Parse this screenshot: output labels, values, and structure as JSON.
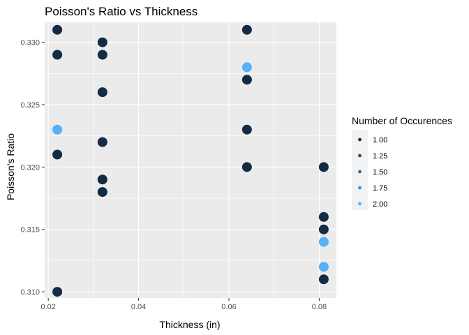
{
  "chart_data": {
    "type": "scatter",
    "title": "Poisson's Ratio vs Thickness",
    "xlabel": "Thickness (in)",
    "ylabel": "Poisson's Ratio",
    "xlim": [
      0.0192,
      0.0838
    ],
    "ylim": [
      0.3095,
      0.3316
    ],
    "x_ticks": [
      0.02,
      0.04,
      0.06,
      0.08
    ],
    "x_tick_labels": [
      "0.02",
      "0.04",
      "0.06",
      "0.08"
    ],
    "y_ticks": [
      0.31,
      0.315,
      0.32,
      0.325,
      0.33
    ],
    "y_tick_labels": [
      "0.310",
      "0.315",
      "0.320",
      "0.325",
      "0.330"
    ],
    "grid": true,
    "panel_background": "#ebebeb",
    "color_scale": {
      "low": "#132b43",
      "high": "#56b1f7",
      "min": 1.0,
      "max": 2.0
    },
    "legend": {
      "title": "Number of Occurences",
      "placement": "right",
      "entries": [
        {
          "label": "1.00",
          "value": 1.0
        },
        {
          "label": "1.25",
          "value": 1.25
        },
        {
          "label": "1.50",
          "value": 1.5
        },
        {
          "label": "1.75",
          "value": 1.75
        },
        {
          "label": "2.00",
          "value": 2.0
        }
      ]
    },
    "points": [
      {
        "x": 0.022,
        "y": 0.331,
        "n": 1
      },
      {
        "x": 0.022,
        "y": 0.329,
        "n": 1
      },
      {
        "x": 0.022,
        "y": 0.323,
        "n": 2
      },
      {
        "x": 0.022,
        "y": 0.321,
        "n": 1
      },
      {
        "x": 0.022,
        "y": 0.31,
        "n": 1
      },
      {
        "x": 0.032,
        "y": 0.33,
        "n": 1
      },
      {
        "x": 0.032,
        "y": 0.329,
        "n": 1
      },
      {
        "x": 0.032,
        "y": 0.326,
        "n": 1
      },
      {
        "x": 0.032,
        "y": 0.322,
        "n": 1
      },
      {
        "x": 0.032,
        "y": 0.319,
        "n": 1
      },
      {
        "x": 0.032,
        "y": 0.318,
        "n": 1
      },
      {
        "x": 0.064,
        "y": 0.331,
        "n": 1
      },
      {
        "x": 0.064,
        "y": 0.328,
        "n": 2
      },
      {
        "x": 0.064,
        "y": 0.327,
        "n": 1
      },
      {
        "x": 0.064,
        "y": 0.323,
        "n": 1
      },
      {
        "x": 0.064,
        "y": 0.32,
        "n": 1
      },
      {
        "x": 0.081,
        "y": 0.32,
        "n": 1
      },
      {
        "x": 0.081,
        "y": 0.316,
        "n": 1
      },
      {
        "x": 0.081,
        "y": 0.315,
        "n": 1
      },
      {
        "x": 0.081,
        "y": 0.314,
        "n": 2
      },
      {
        "x": 0.081,
        "y": 0.312,
        "n": 2
      },
      {
        "x": 0.081,
        "y": 0.311,
        "n": 1
      }
    ]
  }
}
